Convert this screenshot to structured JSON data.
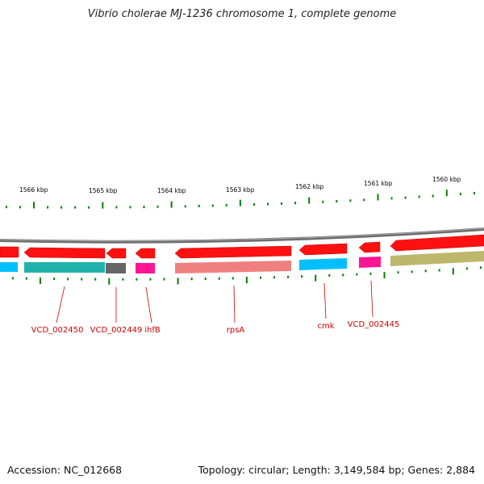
{
  "title": "Vibrio cholerae MJ-1236 chromosome 1, complete genome",
  "footer": {
    "accession": "Accession: NC_012668",
    "summary": "Topology: circular; Length: 3,149,584 bp; Genes: 2,884"
  },
  "ruler": {
    "labels": [
      "1566 kbp",
      "1565 kbp",
      "1564 kbp",
      "1563 kbp",
      "1562 kbp",
      "1561 kbp",
      "1560 kbp"
    ]
  },
  "genes": {
    "names": [
      "VCD_002450",
      "VCD_002449",
      "ihfB",
      "rpsA",
      "cmk",
      "VCD_002445"
    ]
  },
  "colors": {
    "backbone": "#808080",
    "gene_arrow": "#ff0000",
    "label": "#cc0000",
    "tick": "#008000",
    "cds_cyan": "#00bfff",
    "cds_teal": "#20b2aa",
    "cds_gray": "#666666",
    "cds_magenta": "#ff1493",
    "cds_salmon": "#f08080",
    "cds_olive": "#bdb76b"
  }
}
